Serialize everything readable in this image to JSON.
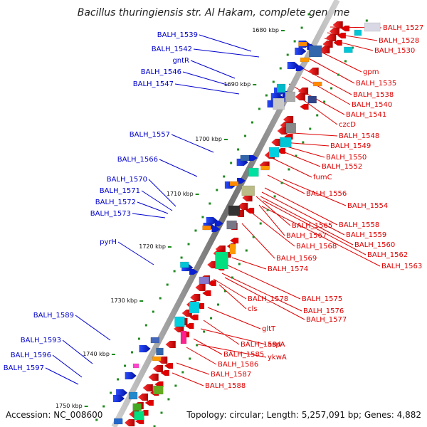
{
  "title": "Bacillus thuringiensis str. Al Hakam, complete genome",
  "footer": {
    "accession": "Accession: NC_008600",
    "summary": "Topology: circular; Length: 5,257,091 bp; Genes: 4,882"
  },
  "colors": {
    "forward_label": "#0000cc",
    "reverse_label": "#dd0000",
    "backbone": "#8a8a8a",
    "gc_dot": "#1e8a1e"
  },
  "kbp_ticks": [
    "1680 kbp",
    "1690 kbp",
    "1700 kbp",
    "1710 kbp",
    "1720 kbp",
    "1730 kbp",
    "1740 kbp",
    "1750 kbp"
  ],
  "left_labels": [
    "BALH_1539",
    "BALH_1542",
    "gntR",
    "BALH_1546",
    "BALH_1547",
    "BALH_1557",
    "BALH_1566",
    "BALH_1570",
    "BALH_1571",
    "BALH_1572",
    "BALH_1573",
    "pyrH",
    "BALH_1589",
    "BALH_1593",
    "BALH_1596",
    "BALH_1597"
  ],
  "right_labels": [
    "BALH_1527",
    "BALH_1528",
    "BALH_1530",
    "gpm",
    "BALH_1535",
    "BALH_1538",
    "BALH_1540",
    "BALH_1541",
    "czcD",
    "BALH_1548",
    "BALH_1549",
    "BALH_1550",
    "BALH_1552",
    "fumC",
    "BALH_1556",
    "BALH_1554",
    "BALH_1558",
    "BALH_1565",
    "BALH_1559",
    "BALH_1567",
    "BALH_1560",
    "BALH_1568",
    "BALH_1562",
    "BALH_1569",
    "BALH_1563",
    "BALH_1574",
    "BALH_1575",
    "BALH_1578",
    "cls",
    "BALH_1576",
    "BALH_1577",
    "gltT",
    "BALH_1584",
    "aspA",
    "BALH_1585",
    "ykwA",
    "BALH_1586",
    "BALH_1587",
    "BALH_1588"
  ]
}
